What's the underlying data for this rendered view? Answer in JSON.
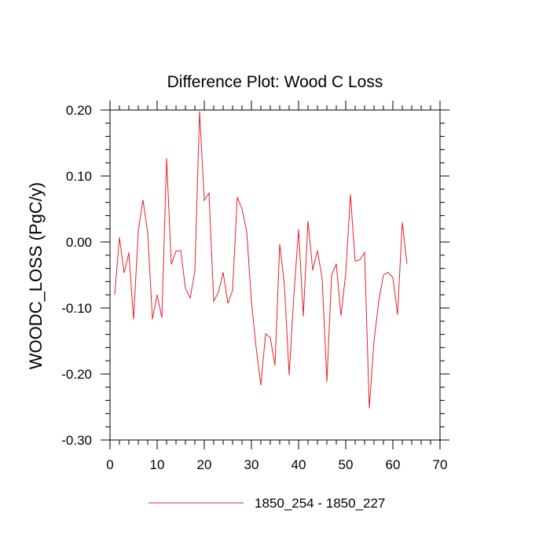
{
  "chart_data": {
    "type": "line",
    "title": "Difference Plot: Wood C Loss",
    "xlabel": "",
    "ylabel": "WOODC_LOSS  (PgC/y)",
    "xlim": [
      0,
      70
    ],
    "ylim": [
      -0.3,
      0.2
    ],
    "x_ticks": [
      0,
      10,
      20,
      30,
      40,
      50,
      60,
      70
    ],
    "x_tick_labels": [
      "0",
      "10",
      "20",
      "30",
      "40",
      "50",
      "60",
      "70"
    ],
    "y_ticks": [
      0.2,
      0.1,
      0.0,
      -0.1,
      -0.2,
      -0.3
    ],
    "y_tick_labels": [
      "0.20",
      "0.10",
      "0.00",
      "-0.10",
      "-0.20",
      "-0.30"
    ],
    "grid": false,
    "legend_placement": "bottom-center",
    "series": [
      {
        "name": "1850_254 - 1850_227",
        "color": "#e8202a",
        "x": [
          1,
          2,
          3,
          4,
          5,
          6,
          7,
          8,
          9,
          10,
          11,
          12,
          13,
          14,
          15,
          16,
          17,
          18,
          19,
          20,
          21,
          22,
          23,
          24,
          25,
          26,
          27,
          28,
          29,
          30,
          31,
          32,
          33,
          34,
          35,
          36,
          37,
          38,
          39,
          40,
          41,
          42,
          43,
          44,
          45,
          46,
          47,
          48,
          49,
          50,
          51,
          52,
          53,
          54,
          55,
          56,
          57,
          58,
          59,
          60,
          61,
          62,
          63
        ],
        "y": [
          -0.08,
          0.007,
          -0.047,
          -0.016,
          -0.117,
          0.017,
          0.064,
          0.014,
          -0.117,
          -0.08,
          -0.115,
          0.127,
          -0.034,
          -0.014,
          -0.013,
          -0.07,
          -0.085,
          -0.044,
          0.198,
          0.063,
          0.074,
          -0.09,
          -0.076,
          -0.046,
          -0.093,
          -0.073,
          0.068,
          0.05,
          0.016,
          -0.09,
          -0.16,
          -0.217,
          -0.139,
          -0.145,
          -0.187,
          -0.003,
          -0.065,
          -0.202,
          -0.081,
          0.019,
          -0.113,
          0.032,
          -0.043,
          -0.013,
          -0.055,
          -0.212,
          -0.05,
          -0.033,
          -0.112,
          -0.048,
          0.072,
          -0.029,
          -0.027,
          -0.016,
          -0.252,
          -0.15,
          -0.09,
          -0.05,
          -0.046,
          -0.054,
          -0.11,
          0.03,
          -0.033
        ]
      }
    ]
  }
}
